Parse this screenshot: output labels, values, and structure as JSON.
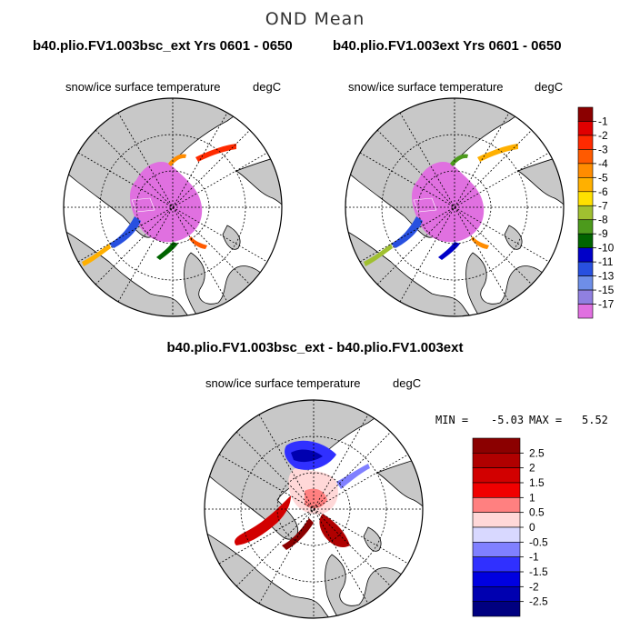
{
  "figure": {
    "title": "OND Mean"
  },
  "panels": [
    {
      "title": "b40.plio.FV1.003bsc_ext  Yrs 0601 - 0650",
      "variable": "snow/ice surface temperature",
      "units": "degC"
    },
    {
      "title": "b40.plio.FV1.003ext  Yrs 0601 - 0650",
      "variable": "snow/ice surface temperature",
      "units": "degC"
    },
    {
      "title": "b40.plio.FV1.003bsc_ext - b40.plio.FV1.003ext",
      "variable": "snow/ice surface temperature",
      "units": "degC",
      "min_label": "MIN =",
      "min_value": "-5.03",
      "max_label": "MAX =",
      "max_value": "5.52"
    }
  ],
  "chart_data": [
    {
      "type": "heatmap",
      "projection": "north polar stereographic",
      "title": "b40.plio.FV1.003bsc_ext  Yrs 0601 - 0650",
      "variable": "snow/ice surface temperature (degC)",
      "colorbar": {
        "ticks": [
          "-1",
          "-2",
          "-3",
          "-4",
          "-5",
          "-6",
          "-7",
          "-8",
          "-9",
          "-10",
          "-11",
          "-13",
          "-15",
          "-17"
        ],
        "colors": [
          "#8b0000",
          "#e00000",
          "#ff2a00",
          "#ff5a00",
          "#ff8c00",
          "#ffb000",
          "#ffe000",
          "#a0c030",
          "#4c9a1c",
          "#006400",
          "#0000c8",
          "#2850e0",
          "#6e8ee8",
          "#9080e0",
          "#e070e0"
        ]
      }
    },
    {
      "type": "heatmap",
      "projection": "north polar stereographic",
      "title": "b40.plio.FV1.003ext  Yrs 0601 - 0650",
      "variable": "snow/ice surface temperature (degC)"
    },
    {
      "type": "heatmap",
      "projection": "north polar stereographic",
      "title": "b40.plio.FV1.003bsc_ext - b40.plio.FV1.003ext",
      "variable": "snow/ice surface temperature difference (degC)",
      "min": -5.03,
      "max": 5.52,
      "colorbar": {
        "ticks": [
          "2.5",
          "2",
          "1.5",
          "1",
          "0.5",
          "0",
          "-0.5",
          "-1",
          "-1.5",
          "-2",
          "-2.5"
        ],
        "colors": [
          "#8b0000",
          "#b00000",
          "#d20000",
          "#f00000",
          "#ff8080",
          "#ffd8d8",
          "#d8d8ff",
          "#8080ff",
          "#3030ff",
          "#0000e0",
          "#0000b0",
          "#000080"
        ]
      }
    }
  ],
  "colors": {
    "land": "#c8c8c8",
    "ocean": "#ffffff",
    "ice_core": "#e070e0"
  }
}
